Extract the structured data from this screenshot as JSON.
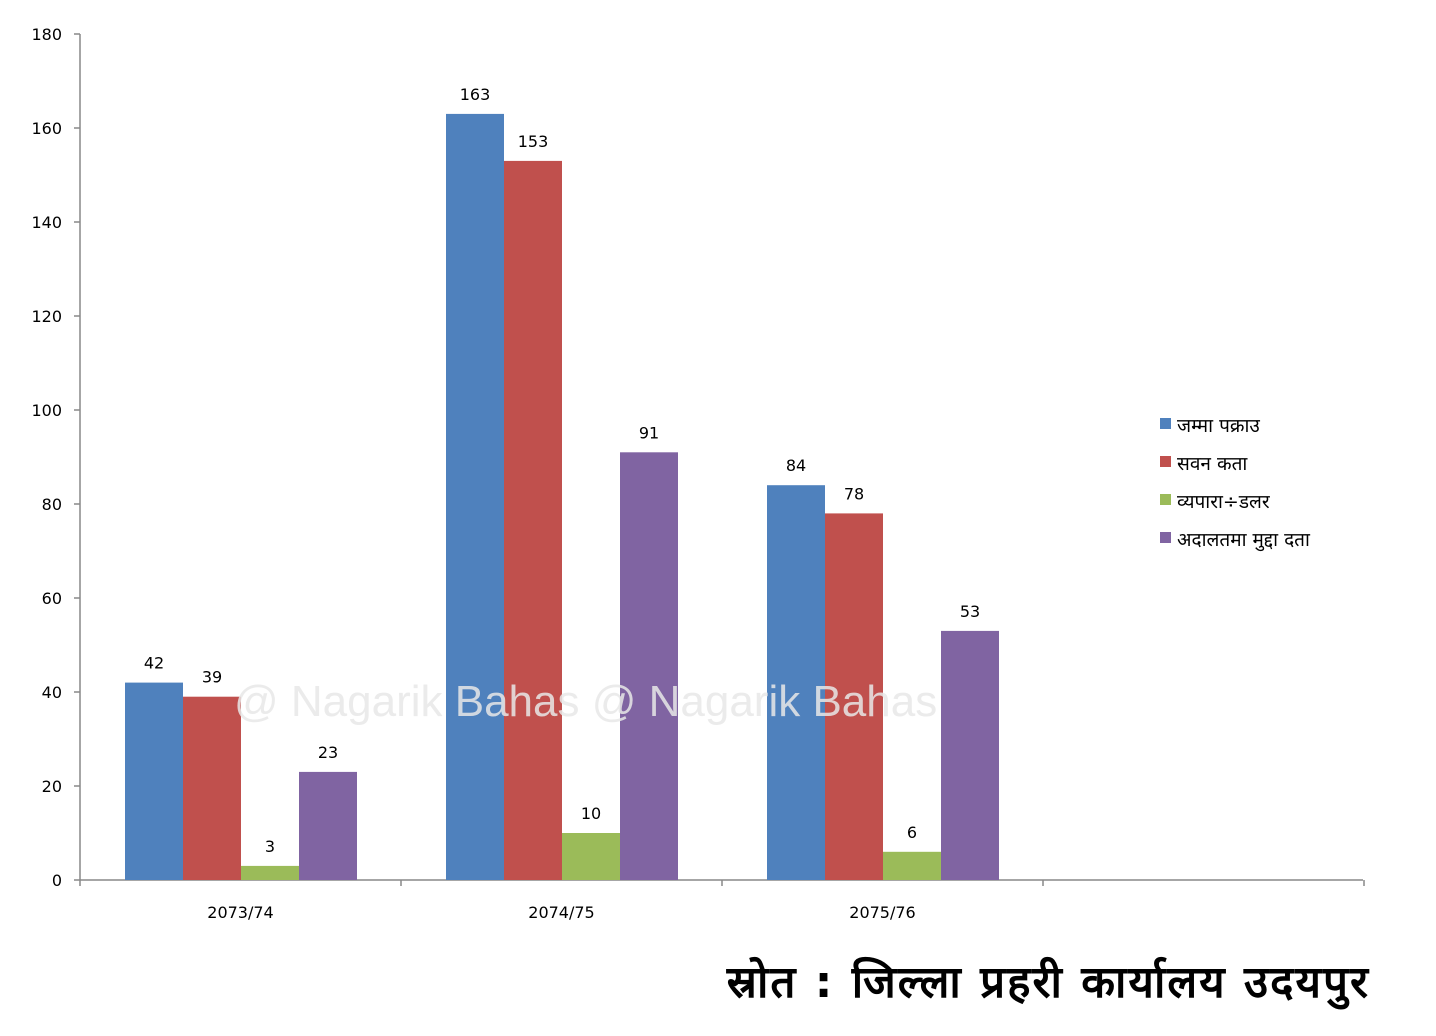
{
  "chart_data": {
    "type": "bar",
    "categories": [
      "2073/74",
      "2074/75",
      "2075/76"
    ],
    "series": [
      {
        "name": "जम्मा पक्राउ",
        "values": [
          42,
          163,
          84
        ],
        "color": "#4F81BD"
      },
      {
        "name": "सवन कता",
        "values": [
          39,
          153,
          78
        ],
        "color": "#C0504D"
      },
      {
        "name": "व्यपारा÷डलर",
        "values": [
          3,
          10,
          6
        ],
        "color": "#9BBB59"
      },
      {
        "name": "अदालतमा मुद्दा दता",
        "values": [
          23,
          91,
          53
        ],
        "color": "#8064A2"
      }
    ],
    "ylim": [
      0,
      180
    ],
    "yticks": [
      0,
      20,
      40,
      60,
      80,
      100,
      120,
      140,
      160,
      180
    ],
    "grid": false,
    "legend_position": "right",
    "annotation": "@ Nagarik Bahas @ Nagarik Bahas"
  },
  "source_text": "स्रोत : जिल्ला प्रहरी कार्यालय उदयपुर"
}
